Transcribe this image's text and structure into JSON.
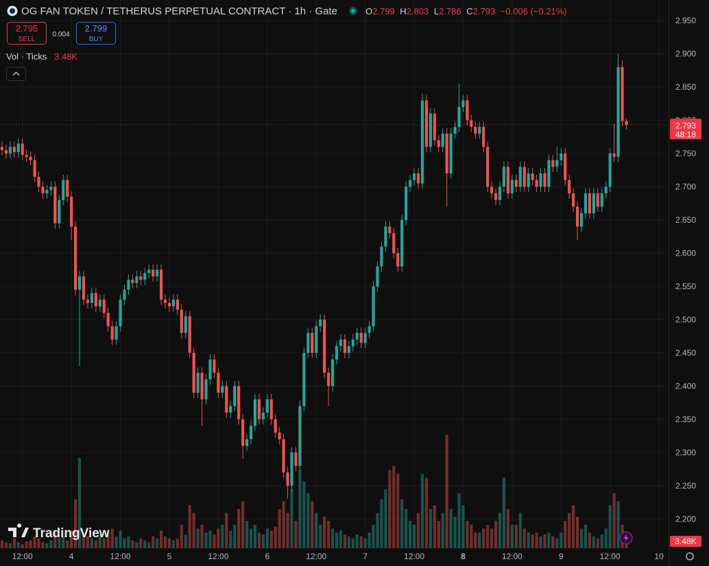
{
  "header": {
    "title": "OG FAN TOKEN / TETHERUS PERPETUAL CONTRACT · 1h · Gate",
    "o": "O",
    "h": "H",
    "l": "L",
    "c": "C",
    "change": "−0.006 (−0.21%)"
  },
  "trade": {
    "sell": 2.795,
    "sell_label": "SELL",
    "spread": 0.004,
    "buy": 2.799,
    "buy_label": "BUY"
  },
  "indicator": {
    "name": "Vol · Ticks",
    "last_label": "3.48K"
  },
  "countdown": "48:18",
  "branding": "TradingView",
  "chart_data": {
    "type": "candlestick",
    "up_color": "#26a69a",
    "down_color": "#ef5350",
    "grid": true,
    "xlim": [
      -0.5,
      163
    ],
    "xticks": [
      {
        "value": 5,
        "label": "12:00"
      },
      {
        "value": 17,
        "label": "4"
      },
      {
        "value": 29,
        "label": "12:00"
      },
      {
        "value": 41,
        "label": "5"
      },
      {
        "value": 53,
        "label": "12:00"
      },
      {
        "value": 65,
        "label": "6"
      },
      {
        "value": 77,
        "label": "12:00"
      },
      {
        "value": 89,
        "label": "7"
      },
      {
        "value": 101,
        "label": "12:00"
      },
      {
        "value": 113,
        "label": "8"
      },
      {
        "value": 125,
        "label": "12:00"
      },
      {
        "value": 137,
        "label": "9"
      },
      {
        "value": 149,
        "label": "12:00"
      },
      {
        "value": 161,
        "label": "10"
      }
    ],
    "ylim": [
      2.156,
      2.981
    ],
    "yticks": [
      {
        "value": 2.95,
        "label": "2.950"
      },
      {
        "value": 2.9,
        "label": "2.900"
      },
      {
        "value": 2.85,
        "label": "2.850"
      },
      {
        "value": 2.8,
        "label": "2.800"
      },
      {
        "value": 2.75,
        "label": "2.750"
      },
      {
        "value": 2.7,
        "label": "2.700"
      },
      {
        "value": 2.65,
        "label": "2.650"
      },
      {
        "value": 2.6,
        "label": "2.600"
      },
      {
        "value": 2.55,
        "label": "2.550"
      },
      {
        "value": 2.5,
        "label": "2.500"
      },
      {
        "value": 2.45,
        "label": "2.450"
      },
      {
        "value": 2.4,
        "label": "2.400"
      },
      {
        "value": 2.35,
        "label": "2.350"
      },
      {
        "value": 2.3,
        "label": "2.300"
      },
      {
        "value": 2.25,
        "label": "2.250"
      },
      {
        "value": 2.2,
        "label": "2.200"
      }
    ],
    "vlim": [
      0,
      70000
    ],
    "open": [
      2.76,
      2.755,
      2.75,
      2.76,
      2.752,
      2.765,
      2.748,
      2.745,
      2.74,
      2.715,
      2.7,
      2.69,
      2.695,
      2.7,
      2.645,
      2.68,
      2.71,
      2.685,
      2.64,
      2.545,
      2.565,
      2.53,
      2.525,
      2.54,
      2.52,
      2.53,
      2.51,
      2.49,
      2.47,
      2.49,
      2.53,
      2.545,
      2.56,
      2.555,
      2.565,
      2.56,
      2.57,
      2.575,
      2.565,
      2.575,
      2.53,
      2.525,
      2.52,
      2.53,
      2.515,
      2.48,
      2.505,
      2.45,
      2.39,
      2.42,
      2.38,
      2.41,
      2.44,
      2.42,
      2.39,
      2.4,
      2.36,
      2.37,
      2.4,
      2.35,
      2.31,
      2.32,
      2.34,
      2.38,
      2.35,
      2.36,
      2.38,
      2.35,
      2.33,
      2.32,
      2.27,
      2.25,
      2.3,
      2.28,
      2.37,
      2.45,
      2.48,
      2.45,
      2.49,
      2.5,
      2.42,
      2.4,
      2.44,
      2.46,
      2.47,
      2.45,
      2.46,
      2.47,
      2.48,
      2.465,
      2.48,
      2.49,
      2.55,
      2.58,
      2.61,
      2.64,
      2.63,
      2.6,
      2.58,
      2.65,
      2.7,
      2.71,
      2.72,
      2.705,
      2.83,
      2.76,
      2.81,
      2.77,
      2.76,
      2.78,
      2.72,
      2.78,
      2.79,
      2.82,
      2.83,
      2.8,
      2.79,
      2.78,
      2.79,
      2.76,
      2.7,
      2.69,
      2.68,
      2.7,
      2.73,
      2.69,
      2.71,
      2.7,
      2.73,
      2.7,
      2.72,
      2.71,
      2.7,
      2.72,
      2.7,
      2.74,
      2.73,
      2.74,
      2.75,
      2.71,
      2.69,
      2.67,
      2.64,
      2.66,
      2.69,
      2.66,
      2.69,
      2.67,
      2.69,
      2.7,
      2.75,
      2.745,
      2.88,
      2.799
    ],
    "high": [
      2.768,
      2.763,
      2.768,
      2.768,
      2.773,
      2.773,
      2.756,
      2.753,
      2.748,
      2.723,
      2.708,
      2.703,
      2.708,
      2.708,
      2.688,
      2.718,
      2.718,
      2.693,
      2.648,
      2.573,
      2.573,
      2.538,
      2.548,
      2.548,
      2.538,
      2.538,
      2.518,
      2.498,
      2.498,
      2.538,
      2.553,
      2.568,
      2.568,
      2.573,
      2.573,
      2.578,
      2.583,
      2.583,
      2.583,
      2.583,
      2.538,
      2.533,
      2.538,
      2.538,
      2.523,
      2.513,
      2.513,
      2.458,
      2.428,
      2.428,
      2.418,
      2.448,
      2.448,
      2.428,
      2.408,
      2.408,
      2.378,
      2.408,
      2.408,
      2.358,
      2.328,
      2.348,
      2.388,
      2.388,
      2.368,
      2.388,
      2.388,
      2.358,
      2.338,
      2.328,
      2.278,
      2.308,
      2.308,
      2.378,
      2.458,
      2.488,
      2.488,
      2.498,
      2.508,
      2.508,
      2.428,
      2.448,
      2.468,
      2.478,
      2.478,
      2.468,
      2.478,
      2.488,
      2.488,
      2.488,
      2.498,
      2.558,
      2.588,
      2.618,
      2.648,
      2.648,
      2.638,
      2.608,
      2.658,
      2.708,
      2.718,
      2.728,
      2.728,
      2.84,
      2.838,
      2.818,
      2.818,
      2.778,
      2.788,
      2.788,
      2.788,
      2.798,
      2.855,
      2.838,
      2.838,
      2.808,
      2.798,
      2.798,
      2.798,
      2.768,
      2.708,
      2.698,
      2.708,
      2.738,
      2.738,
      2.718,
      2.718,
      2.738,
      2.738,
      2.728,
      2.728,
      2.718,
      2.728,
      2.728,
      2.748,
      2.748,
      2.76,
      2.758,
      2.758,
      2.718,
      2.698,
      2.678,
      2.668,
      2.698,
      2.698,
      2.698,
      2.698,
      2.698,
      2.708,
      2.758,
      2.795,
      2.9,
      2.89,
      2.803
    ],
    "low": [
      2.747,
      2.742,
      2.742,
      2.744,
      2.744,
      2.74,
      2.737,
      2.732,
      2.707,
      2.692,
      2.682,
      2.682,
      2.687,
      2.637,
      2.637,
      2.672,
      2.677,
      2.62,
      2.537,
      2.43,
      2.522,
      2.517,
      2.517,
      2.512,
      2.512,
      2.502,
      2.482,
      2.462,
      2.462,
      2.482,
      2.522,
      2.537,
      2.547,
      2.547,
      2.552,
      2.552,
      2.562,
      2.557,
      2.557,
      2.522,
      2.517,
      2.512,
      2.512,
      2.507,
      2.472,
      2.472,
      2.442,
      2.382,
      2.382,
      2.34,
      2.372,
      2.402,
      2.412,
      2.382,
      2.382,
      2.352,
      2.352,
      2.362,
      2.342,
      2.29,
      2.302,
      2.312,
      2.332,
      2.342,
      2.342,
      2.352,
      2.342,
      2.322,
      2.312,
      2.262,
      2.23,
      2.242,
      2.272,
      2.272,
      2.362,
      2.442,
      2.442,
      2.442,
      2.482,
      2.412,
      2.37,
      2.392,
      2.432,
      2.452,
      2.442,
      2.442,
      2.452,
      2.462,
      2.457,
      2.457,
      2.472,
      2.482,
      2.542,
      2.572,
      2.602,
      2.622,
      2.592,
      2.572,
      2.572,
      2.642,
      2.692,
      2.702,
      2.697,
      2.697,
      2.752,
      2.752,
      2.762,
      2.752,
      2.752,
      2.67,
      2.712,
      2.772,
      2.782,
      2.812,
      2.792,
      2.782,
      2.772,
      2.772,
      2.752,
      2.692,
      2.682,
      2.672,
      2.672,
      2.692,
      2.682,
      2.682,
      2.692,
      2.692,
      2.692,
      2.692,
      2.702,
      2.692,
      2.692,
      2.692,
      2.692,
      2.722,
      2.722,
      2.732,
      2.702,
      2.682,
      2.662,
      2.62,
      2.632,
      2.652,
      2.652,
      2.652,
      2.662,
      2.662,
      2.682,
      2.692,
      2.737,
      2.737,
      2.791,
      2.786
    ],
    "close": [
      2.755,
      2.75,
      2.76,
      2.752,
      2.765,
      2.748,
      2.745,
      2.74,
      2.715,
      2.7,
      2.69,
      2.695,
      2.7,
      2.645,
      2.68,
      2.71,
      2.685,
      2.64,
      2.545,
      2.565,
      2.53,
      2.525,
      2.54,
      2.52,
      2.53,
      2.51,
      2.49,
      2.47,
      2.49,
      2.53,
      2.545,
      2.56,
      2.555,
      2.565,
      2.56,
      2.57,
      2.575,
      2.565,
      2.575,
      2.53,
      2.525,
      2.52,
      2.53,
      2.515,
      2.48,
      2.505,
      2.45,
      2.39,
      2.42,
      2.38,
      2.41,
      2.44,
      2.42,
      2.39,
      2.4,
      2.36,
      2.37,
      2.4,
      2.35,
      2.31,
      2.32,
      2.34,
      2.38,
      2.35,
      2.36,
      2.38,
      2.35,
      2.33,
      2.32,
      2.27,
      2.25,
      2.3,
      2.28,
      2.37,
      2.45,
      2.48,
      2.45,
      2.49,
      2.5,
      2.42,
      2.4,
      2.44,
      2.46,
      2.47,
      2.45,
      2.46,
      2.47,
      2.48,
      2.465,
      2.48,
      2.49,
      2.55,
      2.58,
      2.61,
      2.64,
      2.63,
      2.6,
      2.58,
      2.65,
      2.7,
      2.71,
      2.72,
      2.705,
      2.83,
      2.76,
      2.81,
      2.77,
      2.76,
      2.78,
      2.72,
      2.78,
      2.79,
      2.82,
      2.83,
      2.8,
      2.79,
      2.78,
      2.79,
      2.76,
      2.7,
      2.69,
      2.68,
      2.7,
      2.73,
      2.69,
      2.71,
      2.7,
      2.73,
      2.7,
      2.72,
      2.71,
      2.7,
      2.72,
      2.7,
      2.74,
      2.73,
      2.74,
      2.75,
      2.71,
      2.69,
      2.67,
      2.64,
      2.66,
      2.69,
      2.66,
      2.69,
      2.67,
      2.69,
      2.7,
      2.75,
      2.745,
      2.88,
      2.799,
      2.793
    ],
    "volume": [
      4000,
      3000,
      2500,
      5000,
      3000,
      2000,
      3500,
      4000,
      6000,
      5000,
      3000,
      2500,
      4000,
      8000,
      5000,
      6000,
      4000,
      9000,
      25000,
      46000,
      8000,
      6000,
      5000,
      4000,
      7000,
      5000,
      8000,
      10000,
      6000,
      9000,
      5000,
      6000,
      4000,
      3000,
      5000,
      4000,
      3000,
      6000,
      5000,
      9000,
      6000,
      5000,
      4000,
      5000,
      12000,
      7000,
      22000,
      18000,
      10000,
      12000,
      8000,
      9000,
      7000,
      10000,
      12000,
      18000,
      9000,
      12000,
      20000,
      24000,
      14000,
      10000,
      12000,
      8000,
      7000,
      10000,
      9000,
      11000,
      20000,
      24000,
      18000,
      30000,
      14000,
      40000,
      34000,
      28000,
      24000,
      18000,
      12000,
      16000,
      14000,
      10000,
      8000,
      9000,
      7000,
      6000,
      5000,
      7000,
      6000,
      5000,
      8000,
      12000,
      18000,
      25000,
      30000,
      40000,
      42000,
      38000,
      25000,
      20000,
      14000,
      12000,
      18000,
      38000,
      36000,
      20000,
      22000,
      14000,
      18000,
      58000,
      20000,
      16000,
      28000,
      22000,
      14000,
      12000,
      8000,
      8000,
      10000,
      12000,
      10000,
      14000,
      18000,
      36000,
      20000,
      12000,
      12000,
      18000,
      10000,
      8000,
      7000,
      8000,
      6000,
      7000,
      8000,
      6000,
      5000,
      8000,
      14000,
      18000,
      22000,
      16000,
      10000,
      12000,
      8000,
      6000,
      5000,
      7000,
      10000,
      22000,
      28000,
      24000,
      12000,
      3480
    ]
  }
}
